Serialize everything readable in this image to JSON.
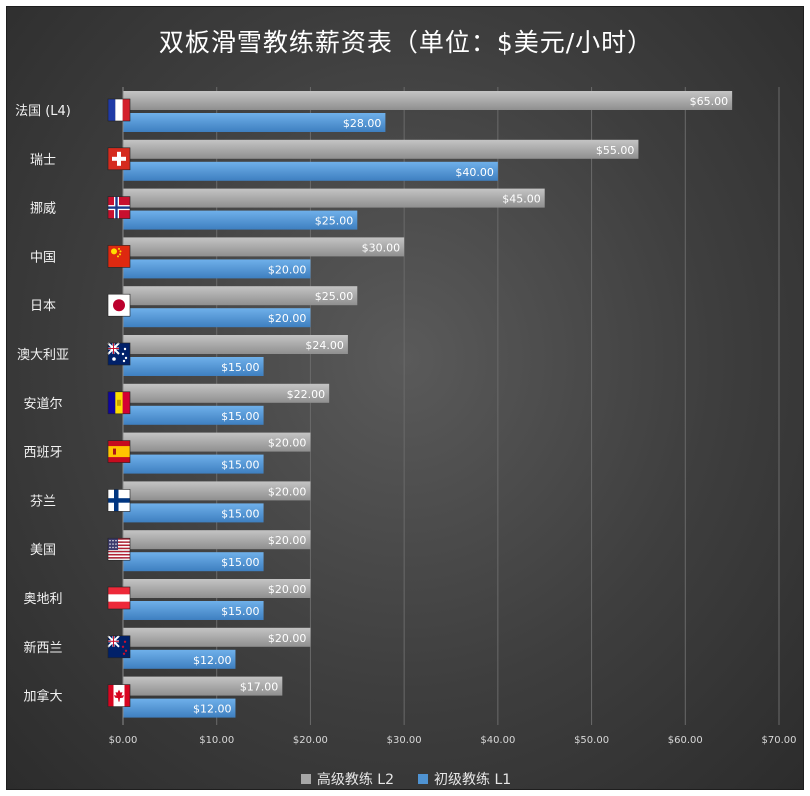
{
  "chart_data": {
    "type": "bar",
    "orientation": "horizontal",
    "title": "双板滑雪教练薪资表（单位：$美元/小时）",
    "categories": [
      "法国 (L4)",
      "瑞士",
      "挪威",
      "中国",
      "日本",
      "澳大利亚",
      "安道尔",
      "西班牙",
      "芬兰",
      "美国",
      "奥地利",
      "新西兰",
      "加拿大"
    ],
    "flags": [
      "france-flag-icon",
      "switzerland-flag-icon",
      "norway-flag-icon",
      "china-flag-icon",
      "japan-flag-icon",
      "australia-flag-icon",
      "andorra-flag-icon",
      "spain-flag-icon",
      "finland-flag-icon",
      "usa-flag-icon",
      "austria-flag-icon",
      "new-zealand-flag-icon",
      "canada-flag-icon"
    ],
    "series": [
      {
        "name": "高级教练 L2",
        "color": "#a6a6a6",
        "values": [
          65,
          55,
          45,
          30,
          25,
          24,
          22,
          20,
          20,
          20,
          20,
          20,
          17
        ],
        "labels": [
          "$65.00",
          "$55.00",
          "$45.00",
          "$30.00",
          "$25.00",
          "$24.00",
          "$22.00",
          "$20.00",
          "$20.00",
          "$20.00",
          "$20.00",
          "$20.00",
          "$17.00"
        ]
      },
      {
        "name": "初级教练 L1",
        "color": "#4f93d2",
        "values": [
          28,
          40,
          25,
          20,
          20,
          15,
          15,
          15,
          15,
          15,
          15,
          12,
          12
        ],
        "labels": [
          "$28.00",
          "$40.00",
          "$25.00",
          "$20.00",
          "$20.00",
          "$15.00",
          "$15.00",
          "$15.00",
          "$15.00",
          "$15.00",
          "$15.00",
          "$12.00",
          "$12.00"
        ]
      }
    ],
    "xlim": [
      0,
      70
    ],
    "xticks": [
      0,
      10,
      20,
      30,
      40,
      50,
      60,
      70
    ],
    "xtick_labels": [
      "$0.00",
      "$10.00",
      "$20.00",
      "$30.00",
      "$40.00",
      "$50.00",
      "$60.00",
      "$70.00"
    ],
    "grid": true,
    "legend_position": "bottom"
  }
}
